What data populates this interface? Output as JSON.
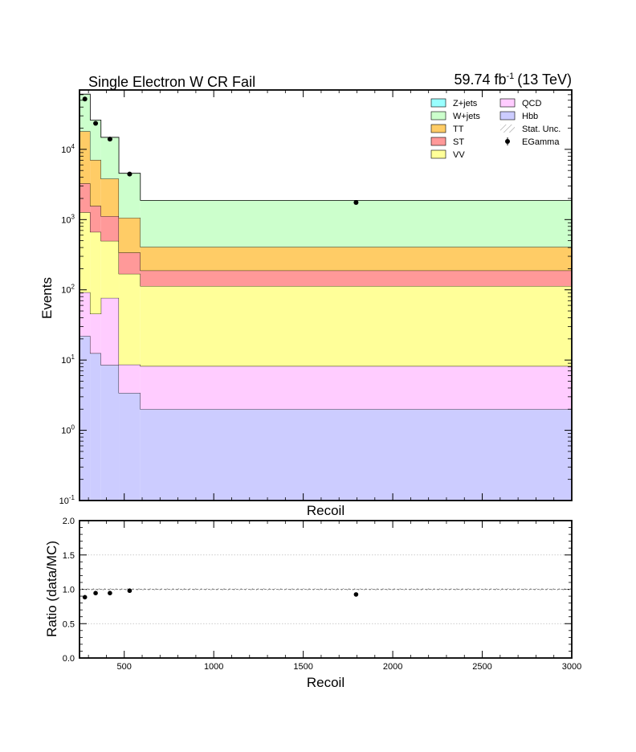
{
  "chart_data": [
    {
      "type": "area",
      "title": "Single Electron W CR Fail",
      "lumi_label": "59.74 fb",
      "lumi_exp": "-1",
      "energy_label": "(13 TeV)",
      "xlabel": "Recoil",
      "ylabel": "Events",
      "yscale": "log",
      "ylim": [
        0.1,
        70000
      ],
      "xlim": [
        250,
        3000
      ],
      "y_ticks": [
        {
          "base": "10",
          "exp": "-1",
          "value": 0.1
        },
        {
          "base": "10",
          "exp": "0",
          "value": 1
        },
        {
          "base": "10",
          "exp": "1",
          "value": 10
        },
        {
          "base": "10",
          "exp": "2",
          "value": 100
        },
        {
          "base": "10",
          "exp": "3",
          "value": 1000
        },
        {
          "base": "10",
          "exp": "4",
          "value": 10000
        }
      ],
      "bin_edges": [
        250,
        310,
        370,
        470,
        590,
        3000
      ],
      "stack_order": [
        "Hbb",
        "QCD",
        "VV",
        "ST",
        "TT",
        "W+jets",
        "Z+jets"
      ],
      "series": [
        {
          "name": "Hbb",
          "color": "#ccccff",
          "values": [
            22,
            12.5,
            8.5,
            3.4,
            2.0
          ]
        },
        {
          "name": "QCD",
          "color": "#ffccff",
          "values": [
            70,
            33,
            68,
            5.2,
            6.2
          ]
        },
        {
          "name": "VV",
          "color": "#ffff99",
          "values": [
            1180,
            620,
            420,
            160,
            105
          ]
        },
        {
          "name": "ST",
          "color": "#ff9999",
          "values": [
            2000,
            900,
            620,
            170,
            75
          ]
        },
        {
          "name": "TT",
          "color": "#ffcc66",
          "values": [
            14800,
            5500,
            2700,
            720,
            220
          ]
        },
        {
          "name": "W+jets",
          "color": "#ccffcc",
          "values": [
            43000,
            19000,
            11000,
            3500,
            1470
          ]
        },
        {
          "name": "Z+jets",
          "color": "#99ffff",
          "values": [
            0,
            0,
            0,
            0,
            0
          ]
        }
      ],
      "data_series": {
        "name": "EGamma",
        "points": [
          {
            "x": 280,
            "y": 52000
          },
          {
            "x": 340,
            "y": 23500
          },
          {
            "x": 420,
            "y": 14000
          },
          {
            "x": 530,
            "y": 4450
          },
          {
            "x": 1795,
            "y": 1750
          }
        ]
      },
      "legend": {
        "placement": "top-right",
        "entries": [
          {
            "label": "Z+jets",
            "kind": "box",
            "color": "#99ffff"
          },
          {
            "label": "QCD",
            "kind": "box",
            "color": "#ffccff"
          },
          {
            "label": "W+jets",
            "kind": "box",
            "color": "#ccffcc"
          },
          {
            "label": "Hbb",
            "kind": "box",
            "color": "#ccccff"
          },
          {
            "label": "TT",
            "kind": "box",
            "color": "#ffcc66"
          },
          {
            "label": "Stat. Unc.",
            "kind": "hatch",
            "color": "#888888"
          },
          {
            "label": "ST",
            "kind": "box",
            "color": "#ff9999"
          },
          {
            "label": "EGamma",
            "kind": "marker",
            "color": "#000000"
          },
          {
            "label": "VV",
            "kind": "box",
            "color": "#ffff99"
          }
        ]
      }
    },
    {
      "type": "scatter",
      "xlabel": "Recoil",
      "ylabel": "Ratio (data/MC)",
      "ylim": [
        0.0,
        2.0
      ],
      "xlim": [
        250,
        3000
      ],
      "y_ticks": [
        "0.0",
        "0.5",
        "1.0",
        "1.5",
        "2.0"
      ],
      "x_ticks": [
        "500",
        "1000",
        "1500",
        "2000",
        "2500",
        "3000"
      ],
      "grid": true,
      "reference_line": 1.0,
      "points": [
        {
          "x": 280,
          "y": 0.885
        },
        {
          "x": 340,
          "y": 0.945
        },
        {
          "x": 420,
          "y": 0.945
        },
        {
          "x": 530,
          "y": 0.98
        },
        {
          "x": 1795,
          "y": 0.925
        }
      ]
    }
  ]
}
